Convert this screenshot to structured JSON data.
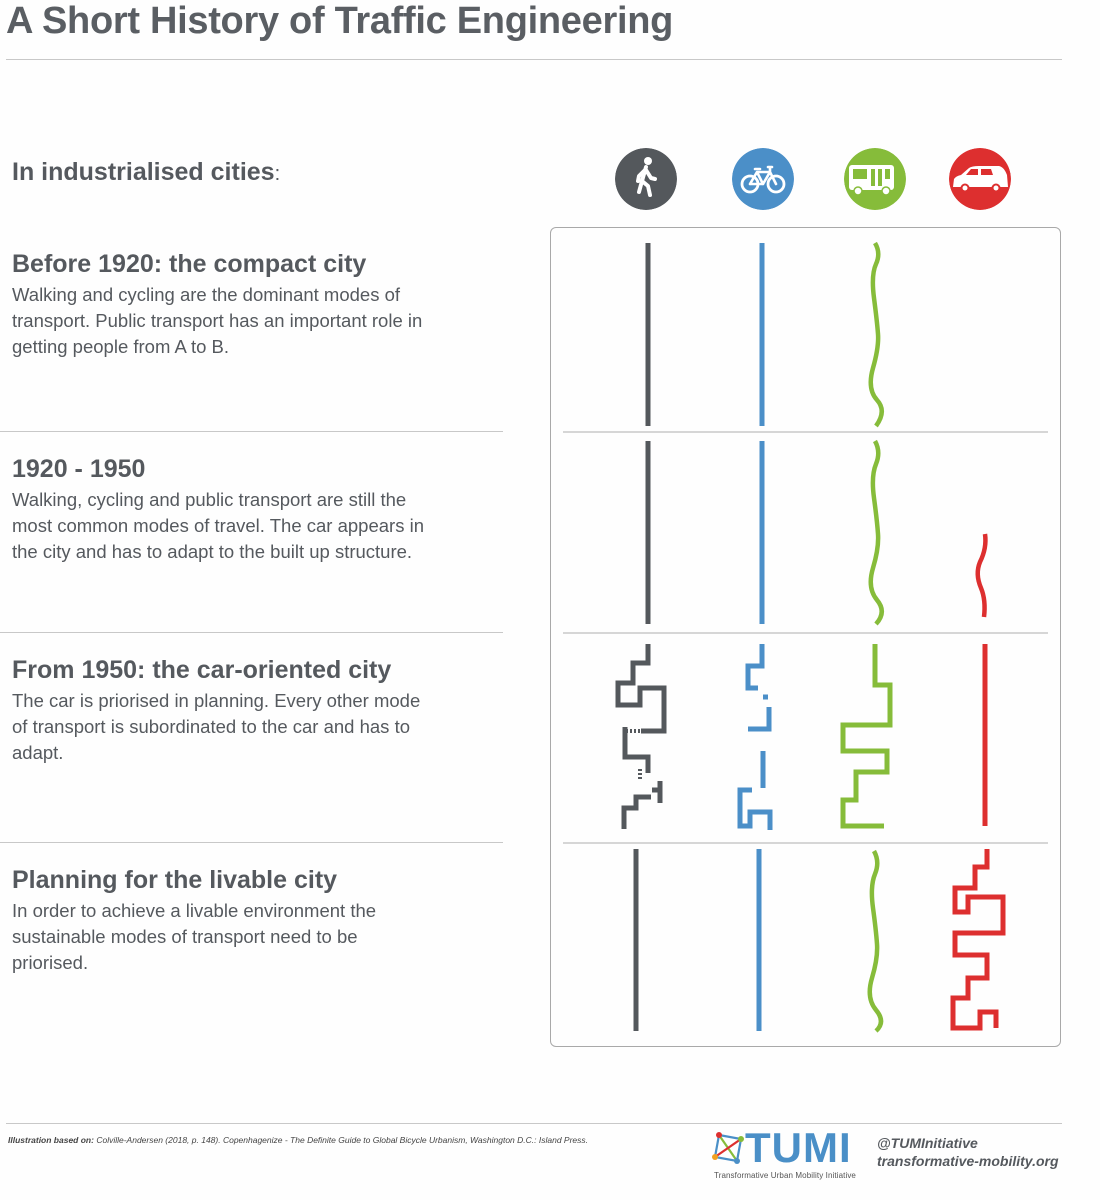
{
  "title": "A Short History of Traffic Engineering",
  "subheading": "In industrialised cities",
  "subheading_suffix": ":",
  "sections": [
    {
      "heading": "Before 1920: the compact city",
      "text": "Walking and cycling are the dominant modes of transport. Public transport has an important role in getting people from A to B."
    },
    {
      "heading": "1920 - 1950",
      "text": "Walking, cycling and public transport are still the most common modes of travel. The car appears in the city and has to adapt to the built up structure."
    },
    {
      "heading": "From 1950: the car-oriented city",
      "text": "The car is priorised in planning. Every other mode of transport is subordinated to the car and has to adapt."
    },
    {
      "heading": "Planning for the livable city",
      "text": "In order to achieve a livable environment the sustainable modes of transport need to be priorised."
    }
  ],
  "modes": [
    {
      "name": "Walking",
      "icon": "pedestrian-icon",
      "color": "#54585c"
    },
    {
      "name": "Cycling",
      "icon": "bicycle-icon",
      "color": "#4b8fc8"
    },
    {
      "name": "Public transport",
      "icon": "bus-icon",
      "color": "#86bc3a"
    },
    {
      "name": "Car",
      "icon": "car-icon",
      "color": "#dd2f2f"
    }
  ],
  "footer": {
    "source_label": "Illustration based on:",
    "source_text": "Colville-Andersen (2018, p. 148). Copenhagenize - The Definite Guide to Global Bicycle Urbanism, Washington D.C.: Island Press.",
    "org_short": "TUMI",
    "org_full": "Transformative Urban Mobility Initiative",
    "handle": "@TUMInitiative",
    "website": "transformative-mobility.org"
  },
  "colors": {
    "divider": "#c8c8c8",
    "panel_border": "#a9a9a9",
    "text": "#55595e"
  }
}
